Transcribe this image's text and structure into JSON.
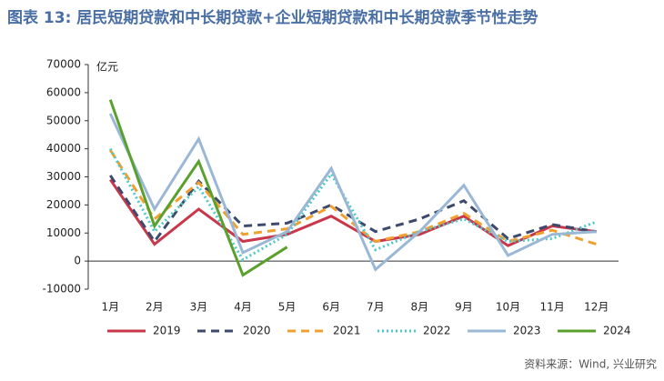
{
  "chart_data": {
    "type": "line",
    "title": "图表 13: 居民短期贷款和中长期贷款+企业短期贷款和中长期贷款季节性走势",
    "y_label": "亿元",
    "source": "资料来源：Wind, 兴业研究",
    "categories": [
      "1月",
      "2月",
      "3月",
      "4月",
      "5月",
      "6月",
      "7月",
      "8月",
      "9月",
      "10月",
      "11月",
      "12月"
    ],
    "ylim": [
      -10000,
      70000
    ],
    "yticks": [
      -10000,
      0,
      10000,
      20000,
      30000,
      40000,
      50000,
      60000,
      70000
    ],
    "legend": "bottom",
    "series": [
      {
        "name": "2019",
        "color": "#c8374a",
        "dash": "solid",
        "values": [
          29000,
          6000,
          18500,
          7000,
          9500,
          16000,
          7000,
          9500,
          16000,
          5500,
          12500,
          10500
        ]
      },
      {
        "name": "2020",
        "color": "#3d4a6b",
        "dash": "dashed",
        "values": [
          30500,
          7000,
          28500,
          12500,
          13500,
          20000,
          10500,
          15000,
          21500,
          8000,
          13000,
          10500
        ]
      },
      {
        "name": "2021",
        "color": "#f0a030",
        "dash": "dashed",
        "values": [
          39500,
          15000,
          28000,
          9500,
          11500,
          19500,
          7000,
          10500,
          17000,
          7000,
          11000,
          6000
        ]
      },
      {
        "name": "2022",
        "color": "#4ec9c9",
        "dash": "dotted",
        "values": [
          40000,
          10500,
          26500,
          500,
          9500,
          31000,
          4000,
          10500,
          15000,
          7000,
          8000,
          14000
        ]
      },
      {
        "name": "2023",
        "color": "#9ab8d6",
        "dash": "solid",
        "values": [
          52500,
          18500,
          43500,
          3000,
          10500,
          33000,
          -3000,
          10500,
          27000,
          2000,
          9500,
          10500
        ]
      },
      {
        "name": "2024",
        "color": "#5aa02c",
        "dash": "solid",
        "values": [
          57500,
          12500,
          35500,
          -5000,
          5000,
          null,
          null,
          null,
          null,
          null,
          null,
          null
        ]
      }
    ]
  }
}
